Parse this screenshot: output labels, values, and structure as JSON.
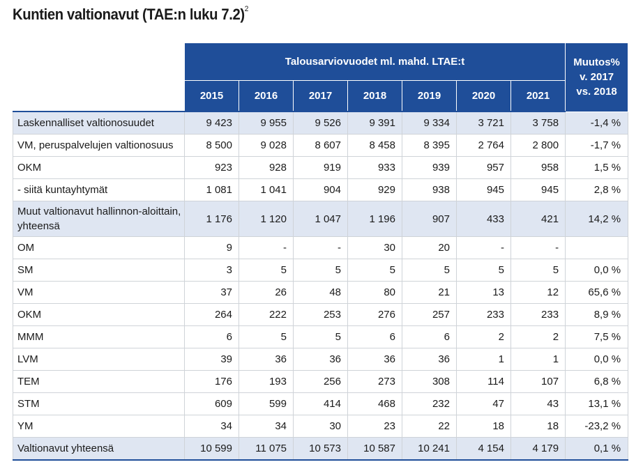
{
  "title": "Kuntien valtionavut (TAE:n luku 7.2)",
  "title_sup": "2",
  "header": {
    "group_label": "Talousarviovuodet ml. mahd. LTAE:t",
    "years": [
      "2015",
      "2016",
      "2017",
      "2018",
      "2019",
      "2020",
      "2021"
    ],
    "change_line1": "Muutos%",
    "change_line2": "v. 2017",
    "change_line3": "vs. 2018"
  },
  "rows": [
    {
      "label": "Laskennalliset valtionosuudet",
      "values": [
        "9 423",
        "9 955",
        "9 526",
        "9 391",
        "9 334",
        "3 721",
        "3 758"
      ],
      "change": "-1,4 %"
    },
    {
      "label": "VM, peruspalvelujen valtionosuus",
      "values": [
        "8 500",
        "9 028",
        "8 607",
        "8 458",
        "8 395",
        "2 764",
        "2 800"
      ],
      "change": "-1,7 %"
    },
    {
      "label": "OKM",
      "values": [
        "923",
        "928",
        "919",
        "933",
        "939",
        "957",
        "958"
      ],
      "change": "1,5 %"
    },
    {
      "label": "- siitä kuntayhtymät",
      "values": [
        "1 081",
        "1 041",
        "904",
        "929",
        "938",
        "945",
        "945"
      ],
      "change": "2,8 %"
    },
    {
      "label": "Muut valtionavut hallinnon-aloittain, yhteensä",
      "values": [
        "1 176",
        "1 120",
        "1 047",
        "1 196",
        "907",
        "433",
        "421"
      ],
      "change": "14,2 %"
    },
    {
      "label": "OM",
      "values": [
        "9",
        "-",
        "-",
        "30",
        "20",
        "-",
        "-"
      ],
      "change": ""
    },
    {
      "label": "SM",
      "values": [
        "3",
        "5",
        "5",
        "5",
        "5",
        "5",
        "5"
      ],
      "change": "0,0 %"
    },
    {
      "label": "VM",
      "values": [
        "37",
        "26",
        "48",
        "80",
        "21",
        "13",
        "12"
      ],
      "change": "65,6 %"
    },
    {
      "label": "OKM",
      "values": [
        "264",
        "222",
        "253",
        "276",
        "257",
        "233",
        "233"
      ],
      "change": "8,9 %"
    },
    {
      "label": "MMM",
      "values": [
        "6",
        "5",
        "5",
        "6",
        "6",
        "2",
        "2"
      ],
      "change": "7,5 %"
    },
    {
      "label": "LVM",
      "values": [
        "39",
        "36",
        "36",
        "36",
        "36",
        "1",
        "1"
      ],
      "change": "0,0 %"
    },
    {
      "label": "TEM",
      "values": [
        "176",
        "193",
        "256",
        "273",
        "308",
        "114",
        "107"
      ],
      "change": "6,8 %"
    },
    {
      "label": "STM",
      "values": [
        "609",
        "599",
        "414",
        "468",
        "232",
        "47",
        "43"
      ],
      "change": "13,1 %"
    },
    {
      "label": "YM",
      "values": [
        "34",
        "34",
        "30",
        "23",
        "22",
        "18",
        "18"
      ],
      "change": "-23,2 %"
    },
    {
      "label": "Valtionavut yhteensä",
      "values": [
        "10 599",
        "11 075",
        "10 573",
        "10 587",
        "10 241",
        "4 154",
        "4 179"
      ],
      "change": "0,1 %"
    }
  ],
  "colors": {
    "header_blue": "#1f4e99",
    "shade": "#dfe6f2"
  }
}
